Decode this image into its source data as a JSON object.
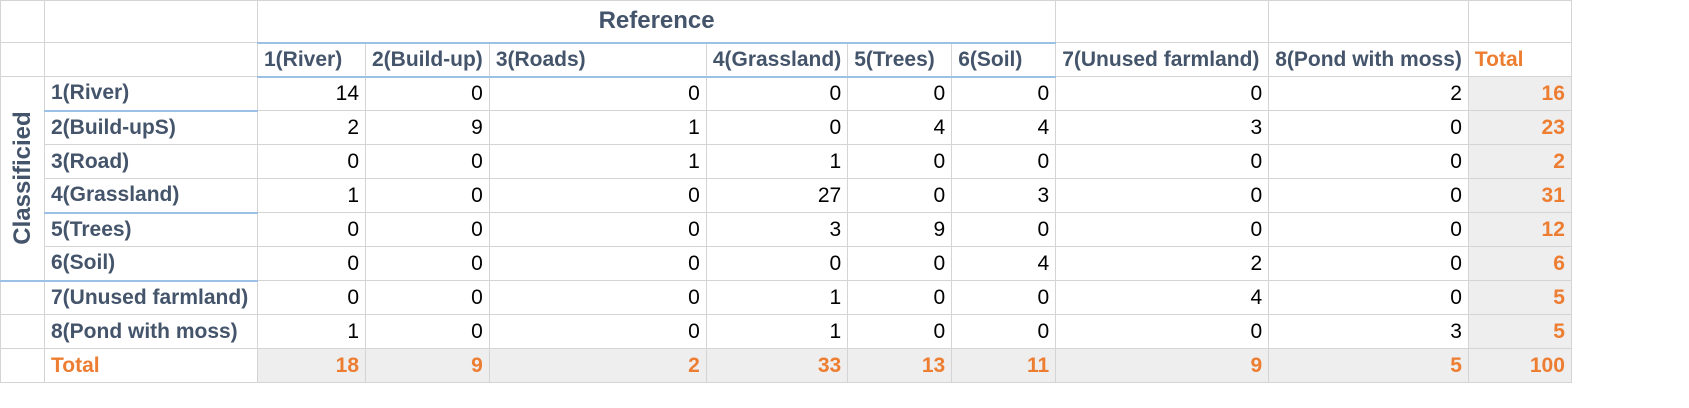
{
  "reference_title": "Reference",
  "classified_title": "Classificied",
  "columns": [
    "1(River)",
    "2(Build-up)",
    "3(Roads)",
    "4(Grassland)",
    "5(Trees)",
    "6(Soil)",
    "7(Unused farmland)",
    "8(Pond with moss)"
  ],
  "total_label": "Total",
  "rows": [
    {
      "label": "1(River)",
      "values": [
        "14",
        "0",
        "0",
        "0",
        "0",
        "0",
        "0",
        "2"
      ],
      "total": "16"
    },
    {
      "label": "2(Build-upS)",
      "values": [
        "2",
        "9",
        "1",
        "0",
        "4",
        "4",
        "3",
        "0"
      ],
      "total": "23"
    },
    {
      "label": "3(Road)",
      "values": [
        "0",
        "0",
        "1",
        "1",
        "0",
        "0",
        "0",
        "0"
      ],
      "total": "2"
    },
    {
      "label": "4(Grassland)",
      "values": [
        "1",
        "0",
        "0",
        "27",
        "0",
        "3",
        "0",
        "0"
      ],
      "total": "31"
    },
    {
      "label": "5(Trees)",
      "values": [
        "0",
        "0",
        "0",
        "3",
        "9",
        "0",
        "0",
        "0"
      ],
      "total": "12"
    },
    {
      "label": "6(Soil)",
      "values": [
        "0",
        "0",
        "0",
        "0",
        "0",
        "4",
        "2",
        "0"
      ],
      "total": "6"
    },
    {
      "label": "7(Unused farmland)",
      "values": [
        "0",
        "0",
        "0",
        "1",
        "0",
        "0",
        "4",
        "0"
      ],
      "total": "5"
    },
    {
      "label": "8(Pond with moss)",
      "values": [
        "1",
        "0",
        "0",
        "1",
        "0",
        "0",
        "0",
        "3"
      ],
      "total": "5"
    }
  ],
  "totals_row": {
    "label": "Total",
    "values": [
      "18",
      "9",
      "2",
      "33",
      "13",
      "11",
      "9",
      "5"
    ],
    "total": "100"
  }
}
